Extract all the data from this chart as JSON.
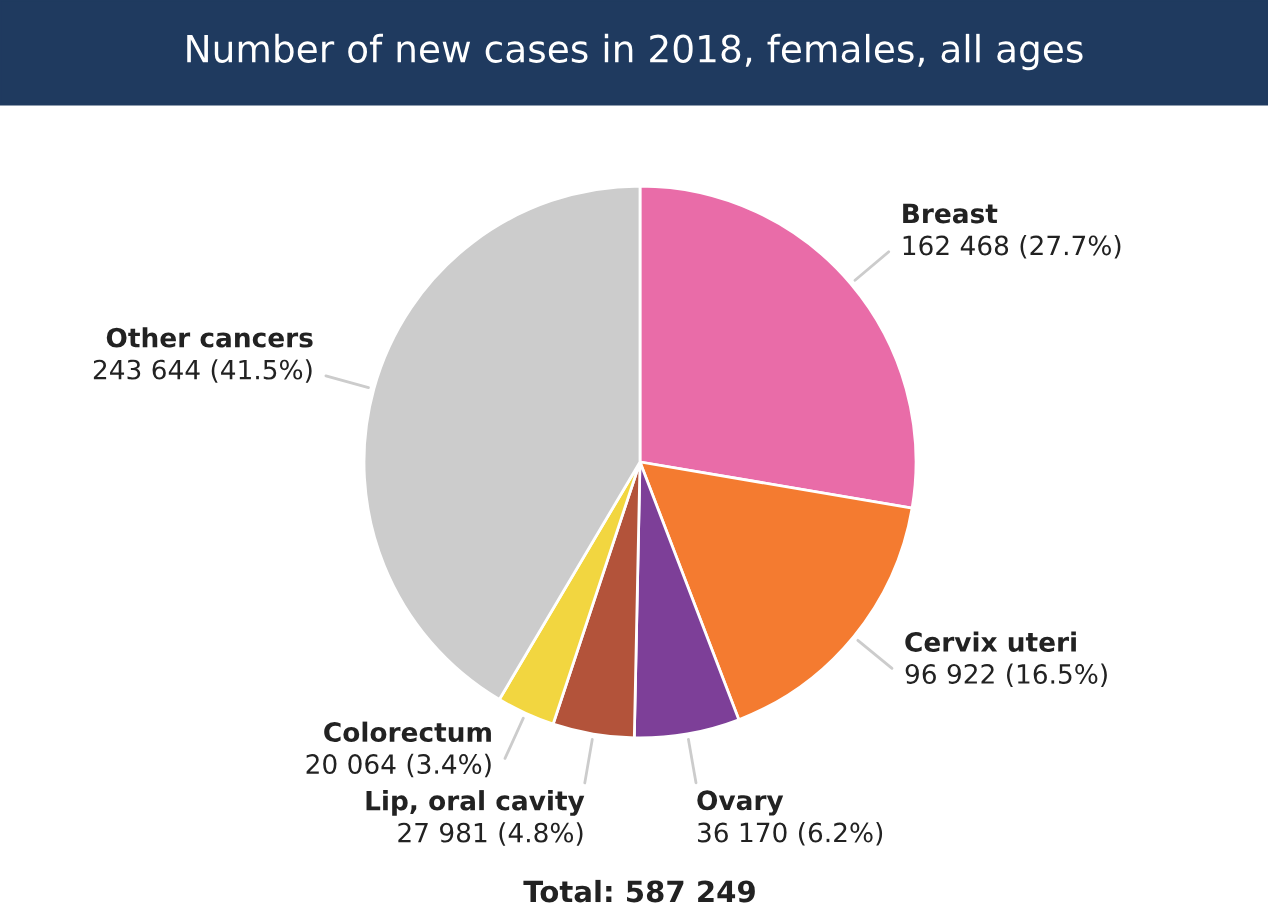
{
  "chart_data": {
    "type": "pie",
    "title": "Number of new cases in 2018, females, all ages",
    "categories": [
      "Breast",
      "Cervix uteri",
      "Ovary",
      "Lip, oral cavity",
      "Colorectum",
      "Other cancers"
    ],
    "values": [
      162468,
      96922,
      36170,
      27981,
      20064,
      243644
    ],
    "value_labels": [
      "162 468 (27.7%)",
      "96 922 (16.5%)",
      "36 170 (6.2%)",
      "27 981 (4.8%)",
      "20 064 (3.4%)",
      "243 644 (41.5%)"
    ],
    "colors": [
      "#e96ca8",
      "#f47b30",
      "#7d3f98",
      "#b3533a",
      "#f2d640",
      "#cccccc"
    ],
    "annotations": [
      "Total: 587 249"
    ]
  }
}
